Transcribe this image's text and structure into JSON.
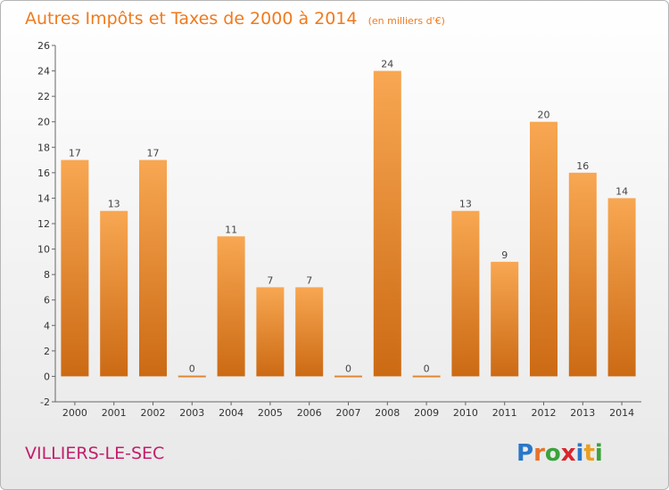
{
  "chart_data": {
    "type": "bar",
    "title": "Autres Impôts et Taxes de 2000 à 2014",
    "subtitle": "(en milliers d'€)",
    "categories": [
      "2000",
      "2001",
      "2002",
      "2003",
      "2004",
      "2005",
      "2006",
      "2007",
      "2008",
      "2009",
      "2010",
      "2011",
      "2012",
      "2013",
      "2014"
    ],
    "values": [
      17,
      13,
      17,
      0,
      11,
      7,
      7,
      0,
      24,
      0,
      13,
      9,
      20,
      16,
      14
    ],
    "value_labels": [
      "17",
      "13",
      "17",
      "0",
      "11",
      "7",
      "7",
      "0",
      "24",
      "0",
      "13",
      "9",
      "20",
      "16",
      "14"
    ],
    "ylim": [
      -2,
      26
    ],
    "yticks": [
      "-2",
      "0",
      "2",
      "4",
      "6",
      "8",
      "10",
      "12",
      "14",
      "16",
      "18",
      "20",
      "22",
      "24",
      "26"
    ],
    "grid": false,
    "bar_color": "#f0963c"
  },
  "footer": {
    "place": "VILLIERS-LE-SEC",
    "logo": [
      "P",
      "r",
      "o",
      "x",
      "i",
      "t",
      "i"
    ]
  },
  "colors": {
    "title": "#f07a1e",
    "place": "#c21e6a",
    "logo": [
      "#2a77c8",
      "#e8722a",
      "#3aa33a",
      "#d8262d",
      "#2a77c8",
      "#e8a020",
      "#3aa33a"
    ]
  }
}
